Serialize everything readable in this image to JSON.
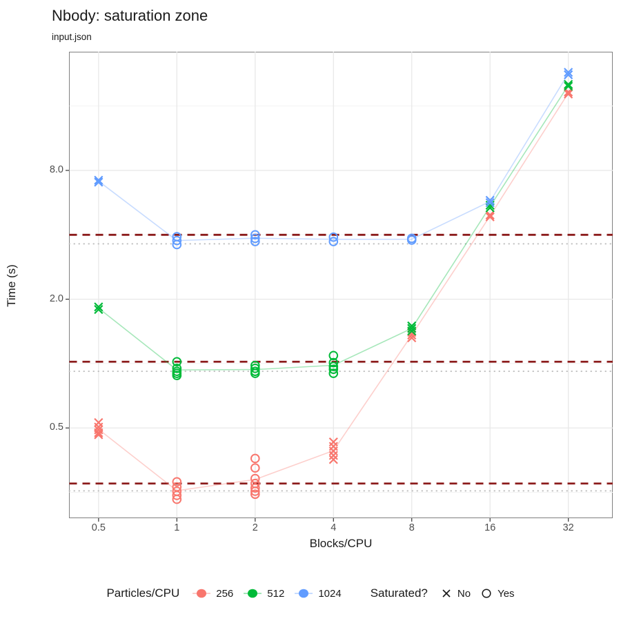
{
  "header": {
    "title": "Nbody: saturation zone",
    "subtitle": "input.json"
  },
  "chart_data": {
    "type": "scatter",
    "title": "Nbody: saturation zone",
    "subtitle": "input.json",
    "xlabel": "Blocks/CPU",
    "ylabel": "Time (s)",
    "x_scale": "log2",
    "y_scale": "log",
    "xlim": [
      0.386,
      47.4
    ],
    "ylim": [
      0.19,
      28.7
    ],
    "x_tick_values": [
      0.5,
      1,
      2,
      4,
      8,
      16,
      32
    ],
    "x_tick_labels": [
      "0.5",
      "1",
      "2",
      "4",
      "8",
      "16",
      "32"
    ],
    "y_tick_values": [
      0.5,
      2.0,
      8.0
    ],
    "y_tick_labels": [
      "0.5",
      "2.0",
      "8.0"
    ],
    "y_minor_values": [
      0.25,
      1.0,
      4.0,
      16.0
    ],
    "grid": true,
    "legend_position": "bottom",
    "shape_encoding": {
      "x": "No (not saturated)",
      "o": "Yes (saturated)"
    },
    "ref_lines": {
      "dashed": {
        "color": "#8B1A1A",
        "values": [
          4.0,
          1.02,
          0.275
        ]
      },
      "dotted": {
        "color": "#BEBEBE",
        "values": [
          3.63,
          0.92,
          0.254
        ]
      }
    },
    "series": [
      {
        "name": "256",
        "color": "#F8766D",
        "points": [
          {
            "x": 0.5,
            "shape": "x",
            "y": [
              0.53,
              0.505,
              0.49,
              0.475,
              0.465
            ]
          },
          {
            "x": 1,
            "shape": "o",
            "y": [
              0.28,
              0.265,
              0.253,
              0.242,
              0.232
            ]
          },
          {
            "x": 2,
            "shape": "o",
            "y": [
              0.36,
              0.325,
              0.29,
              0.275,
              0.262,
              0.253,
              0.245
            ]
          },
          {
            "x": 4,
            "shape": "x",
            "y": [
              0.43,
              0.41,
              0.39,
              0.372,
              0.356
            ]
          },
          {
            "x": 8,
            "shape": "x",
            "y": [
              1.4,
              1.36,
              1.32
            ]
          },
          {
            "x": 16,
            "shape": "x",
            "y": [
              4.95,
              4.85
            ]
          },
          {
            "x": 32,
            "shape": "x",
            "y": [
              18.6,
              18.2
            ]
          }
        ]
      },
      {
        "name": "512",
        "color": "#00BA38",
        "points": [
          {
            "x": 0.5,
            "shape": "x",
            "y": [
              1.84,
              1.79
            ]
          },
          {
            "x": 1,
            "shape": "o",
            "y": [
              1.02,
              0.95,
              0.92,
              0.9,
              0.88
            ]
          },
          {
            "x": 2,
            "shape": "o",
            "y": [
              0.98,
              0.95,
              0.92,
              0.9
            ]
          },
          {
            "x": 4,
            "shape": "o",
            "y": [
              1.09,
              1.01,
              0.97,
              0.94,
              0.9
            ]
          },
          {
            "x": 8,
            "shape": "x",
            "y": [
              1.5,
              1.46,
              1.42
            ]
          },
          {
            "x": 16,
            "shape": "x",
            "y": [
              5.5,
              5.35
            ]
          },
          {
            "x": 32,
            "shape": "x",
            "y": [
              20.2,
              19.8
            ]
          }
        ]
      },
      {
        "name": "1024",
        "color": "#619CFF",
        "points": [
          {
            "x": 0.5,
            "shape": "x",
            "y": [
              7.2,
              7.05
            ]
          },
          {
            "x": 1,
            "shape": "o",
            "y": [
              3.92,
              3.76,
              3.6
            ]
          },
          {
            "x": 2,
            "shape": "o",
            "y": [
              4.0,
              3.85,
              3.72
            ]
          },
          {
            "x": 4,
            "shape": "o",
            "y": [
              3.9,
              3.72
            ]
          },
          {
            "x": 8,
            "shape": "o",
            "y": [
              3.85,
              3.78
            ]
          },
          {
            "x": 16,
            "shape": "x",
            "y": [
              5.8,
              5.65
            ]
          },
          {
            "x": 32,
            "shape": "x",
            "y": [
              23.0,
              22.4
            ]
          }
        ]
      }
    ]
  },
  "legend": {
    "color_title": "Particles/CPU",
    "color_items": [
      {
        "label": "256"
      },
      {
        "label": "512"
      },
      {
        "label": "1024"
      }
    ],
    "shape_title": "Saturated?",
    "shape_items": [
      {
        "shape": "x",
        "label": "No"
      },
      {
        "shape": "o",
        "label": "Yes"
      }
    ]
  },
  "colors": {
    "panel_border": "#7f7f7f",
    "grid_major": "#e8e8e8",
    "grid_minor": "#f2f2f2",
    "tick_mark": "#333333",
    "tick_text": "#4d4d4d",
    "legend_glyph": "#1a1a1a"
  }
}
